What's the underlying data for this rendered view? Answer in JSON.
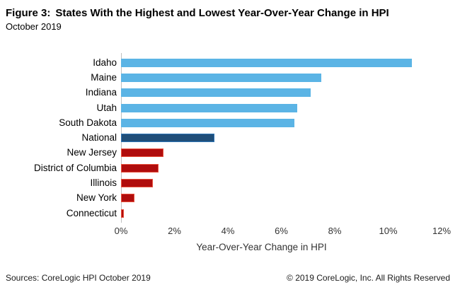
{
  "header": {
    "title_prefix": "Figure 3:",
    "title": "States With the Highest and Lowest Year-Over-Year Change in HPI",
    "subtitle": "October 2019"
  },
  "chart_data": {
    "type": "bar",
    "orientation": "horizontal",
    "title": "Figure 3: States With the Highest and Lowest Year-Over-Year Change in HPI",
    "subtitle": "October 2019",
    "xlabel": "Year-Over-Year Change in HPI",
    "ylabel": "",
    "xlim": [
      0,
      12
    ],
    "grid": false,
    "legend": false,
    "categories": [
      "Idaho",
      "Maine",
      "Indiana",
      "Utah",
      "South Dakota",
      "National",
      "New Jersey",
      "District of Columbia",
      "Illinois",
      "New York",
      "Connecticut"
    ],
    "values": [
      10.9,
      7.5,
      7.1,
      6.6,
      6.5,
      3.5,
      1.6,
      1.4,
      1.2,
      0.5,
      0.1
    ],
    "bar_colors": [
      "lightblue",
      "lightblue",
      "lightblue",
      "lightblue",
      "lightblue",
      "navy",
      "red",
      "red",
      "red",
      "red",
      "red"
    ],
    "colors": {
      "lightblue": "#5BB4E5",
      "navy": "#1F4E79",
      "navy_border": "#2E75B6",
      "red": "#B00D0D",
      "red_border": "#E8503C",
      "axis_line": "#BFBFBF"
    },
    "xticks": [
      {
        "value": 0,
        "label": "0%"
      },
      {
        "value": 2,
        "label": "2%"
      },
      {
        "value": 4,
        "label": "4%"
      },
      {
        "value": 6,
        "label": "6%"
      },
      {
        "value": 8,
        "label": "8%"
      },
      {
        "value": 10,
        "label": "10%"
      },
      {
        "value": 12,
        "label": "12%"
      }
    ]
  },
  "footer": {
    "sources": "Sources: CoreLogic HPI October 2019",
    "copyright": "© 2019 CoreLogic, Inc. All Rights Reserved"
  }
}
